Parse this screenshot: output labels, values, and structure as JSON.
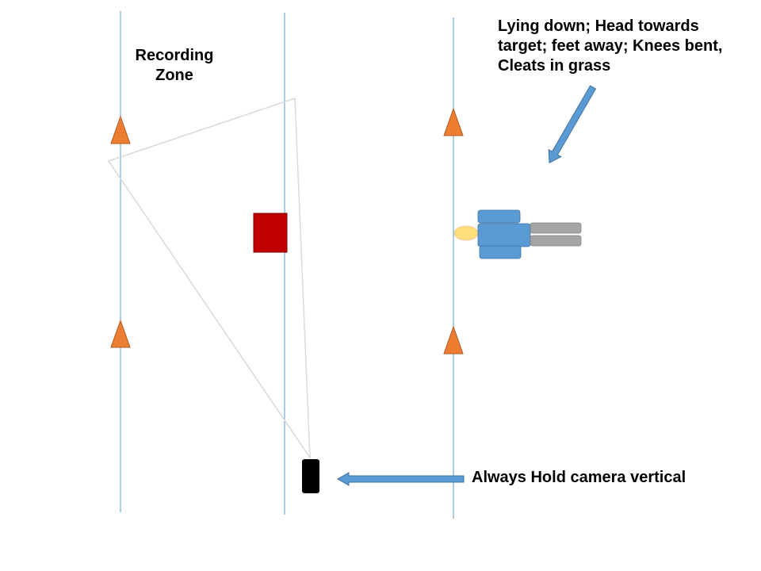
{
  "labels": {
    "recording_zone_line1": "Recording",
    "recording_zone_line2": "Zone",
    "posture_line1": "Lying down; Head towards",
    "posture_line2": "target; feet away; Knees bent,",
    "posture_line3": "Cleats in grass",
    "camera_instruction": "Always Hold camera vertical"
  },
  "colors": {
    "line": "#5b9bd5",
    "cone_fill": "#ed7d31",
    "cone_stroke": "#ae5a21",
    "target_fill": "#c00000",
    "camera_fill": "#000000",
    "body_fill": "#5b9bd5",
    "legs_fill": "#a5a5a5",
    "head_fill": "#ffd966",
    "arrow_fill": "#5b9bd5",
    "zone_outline": "#d9d9d9"
  },
  "icons": {
    "cone": "triangle-cone",
    "target": "square-target",
    "camera": "phone-camera",
    "person": "lying-person"
  }
}
